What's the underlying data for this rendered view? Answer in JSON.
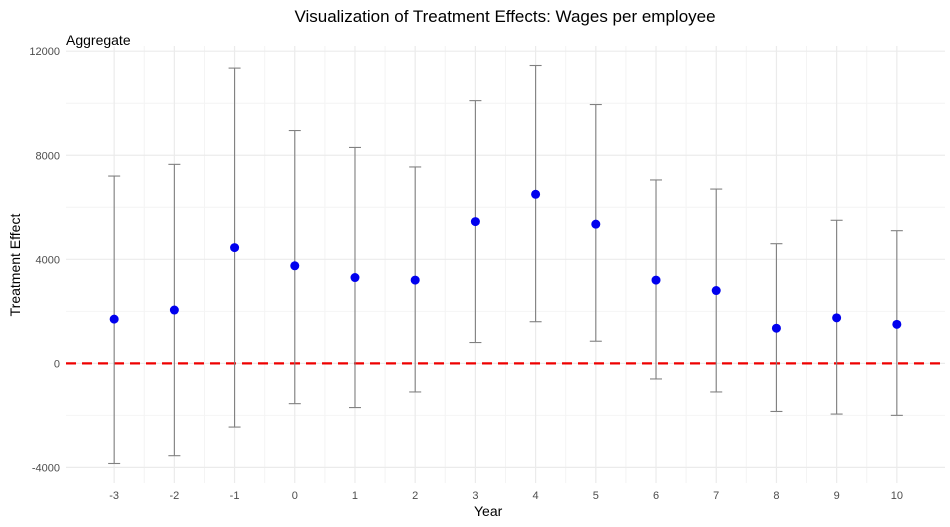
{
  "chart_data": {
    "type": "scatter",
    "title": "Visualization of Treatment Effects: Wages per employee",
    "subtitle": "Aggregate",
    "xlabel": "Year",
    "ylabel": "Treatment Effect",
    "x": [
      -3,
      -2,
      -1,
      0,
      1,
      2,
      3,
      4,
      5,
      6,
      7,
      8,
      9,
      10
    ],
    "series": [
      {
        "estimate": [
          1700,
          2050,
          4450,
          3750,
          3300,
          3200,
          5450,
          6500,
          5350,
          3200,
          2800,
          1350,
          1750,
          1500
        ],
        "lower": [
          -3850,
          -3550,
          -2450,
          -1550,
          -1700,
          -1100,
          800,
          1600,
          850,
          -600,
          -1100,
          -1850,
          -1950,
          -2000
        ],
        "upper": [
          7200,
          7650,
          11350,
          8950,
          8300,
          7550,
          10100,
          11450,
          9950,
          7050,
          6700,
          4600,
          5500,
          5100
        ]
      }
    ],
    "ylim": [
      -4600,
      12200
    ],
    "xlim": [
      -3.8,
      10.8
    ],
    "yticks": [
      -4000,
      0,
      4000,
      8000,
      12000
    ],
    "ytick_labels": [
      "-4000",
      "0",
      "4000",
      "8000",
      "12000"
    ],
    "xtick_labels": [
      "-3",
      "-2",
      "-1",
      "0",
      "1",
      "2",
      "3",
      "4",
      "5",
      "6",
      "7",
      "8",
      "9",
      "10"
    ],
    "reference_line": 0,
    "grid": true,
    "colors": {
      "point": "#0000ee",
      "errorbar": "#808080",
      "reference_line": "#ee0000",
      "grid_major": "#ebebeb",
      "grid_minor": "#f4f4f4",
      "tick_label": "#4d4d4d"
    }
  }
}
